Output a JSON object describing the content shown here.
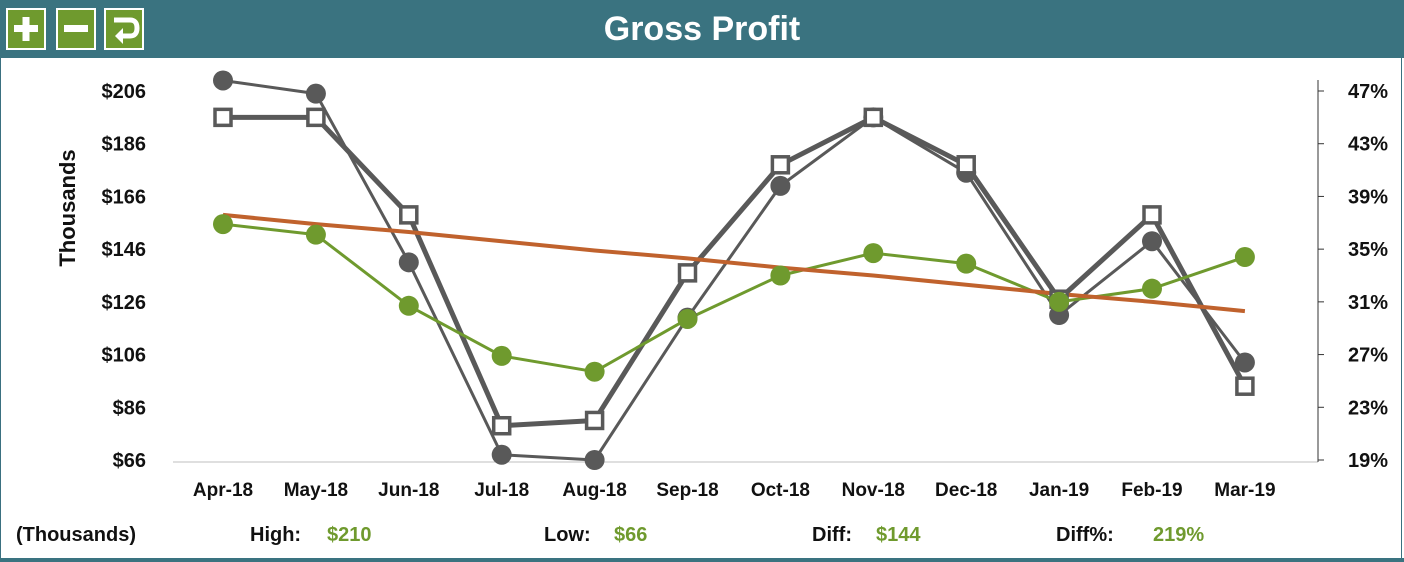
{
  "header": {
    "title": "Gross Profit"
  },
  "toolbar": {
    "buttons": [
      {
        "icon": "plus-icon",
        "action": "zoom-in"
      },
      {
        "icon": "minus-icon",
        "action": "zoom-out"
      },
      {
        "icon": "undo-icon",
        "action": "reset"
      }
    ]
  },
  "colors": {
    "header": "#3a7380",
    "accent": "#6f9a2e",
    "series_dark": "#595959",
    "trend": "#c0622d"
  },
  "chart_data": {
    "type": "line",
    "categories": [
      "Apr-18",
      "May-18",
      "Jun-18",
      "Jul-18",
      "Aug-18",
      "Sep-18",
      "Oct-18",
      "Nov-18",
      "Dec-18",
      "Jan-19",
      "Feb-19",
      "Mar-19"
    ],
    "ylabel": "Thousands",
    "yticks_left": [
      "$206",
      "$186",
      "$166",
      "$146",
      "$126",
      "$106",
      "$86",
      "$66"
    ],
    "yticks_right": [
      "47%",
      "43%",
      "39%",
      "35%",
      "31%",
      "27%",
      "23%",
      "19%"
    ],
    "ylim_left": [
      66,
      206
    ],
    "ylim_right": [
      19,
      47
    ],
    "series": [
      {
        "axis": "left",
        "marker": "circle",
        "color": "#595959",
        "values": [
          210,
          205,
          141,
          68,
          66,
          120,
          170,
          196,
          175,
          121,
          149,
          103
        ]
      },
      {
        "axis": "left",
        "marker": "square",
        "color": "#595959",
        "values": [
          196,
          196,
          159,
          79,
          81,
          137,
          178,
          196,
          178,
          127,
          159,
          94
        ]
      },
      {
        "axis": "right",
        "marker": "circle",
        "color": "#6f9a2e",
        "values": [
          36.9,
          36.1,
          30.7,
          26.9,
          25.7,
          29.7,
          33.0,
          34.7,
          33.9,
          31.0,
          32.0,
          34.4
        ]
      },
      {
        "axis": "right",
        "marker": "none",
        "color": "#c0622d",
        "trendline": true,
        "values": [
          37.6,
          36.9,
          36.3,
          35.6,
          34.9,
          34.3,
          33.6,
          33.0,
          32.3,
          31.6,
          31.0,
          30.3
        ]
      }
    ]
  },
  "footer": {
    "units_label": "(Thousands)",
    "high_label": "High:",
    "high_value": "$210",
    "low_label": "Low:",
    "low_value": "$66",
    "diff_label": "Diff:",
    "diff_value": "$144",
    "diffpct_label": "Diff%:",
    "diffpct_value": "219%"
  }
}
